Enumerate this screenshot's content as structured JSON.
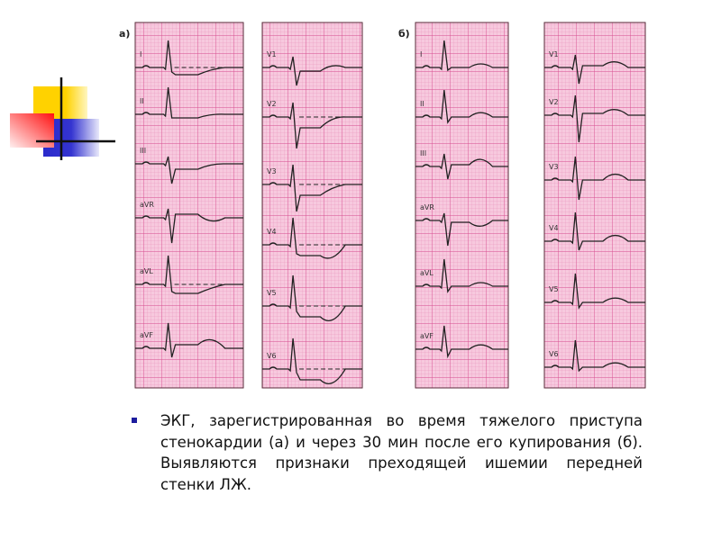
{
  "decoration": {
    "name": "slide-logo-squares",
    "colors": {
      "yellow": "#ffd200",
      "red": "#ff2020",
      "blue": "#2a2acc",
      "line": "#111111"
    }
  },
  "figure": {
    "panels": [
      {
        "label": "а)",
        "leads": [
          "I",
          "II",
          "III",
          "aVR",
          "aVL",
          "aVF"
        ]
      },
      {
        "label": "",
        "leads": [
          "V1",
          "V2",
          "V3",
          "V4",
          "V5",
          "V6"
        ]
      },
      {
        "label": "б)",
        "leads": [
          "I",
          "II",
          "III",
          "aVR",
          "aVL",
          "aVF"
        ]
      },
      {
        "label": "",
        "leads": [
          "V1",
          "V2",
          "V3",
          "V4",
          "V5",
          "V6"
        ]
      }
    ],
    "colors": {
      "paper": "#f7c9de",
      "grid_minor": "#e690ba",
      "grid_major": "#d64b8f",
      "trace": "#222222"
    }
  },
  "caption": {
    "bullet_color": "#1d1d9e",
    "text": "ЭКГ, зарегистрированная во время тяжелого приступа стенокардии (а) и через 30 мин после его купирования (б). Выявляются признаки преходящей ишемии передней стенки ЛЖ."
  }
}
